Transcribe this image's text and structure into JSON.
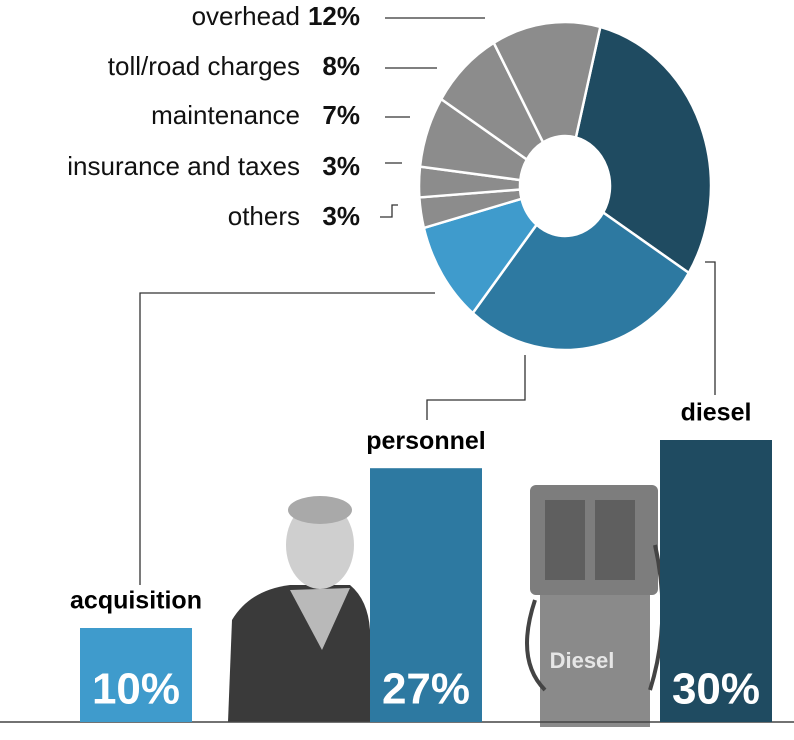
{
  "chart_data": {
    "type": "pie",
    "categories": [
      "diesel",
      "personnel",
      "acquisition",
      "others",
      "insurance and taxes",
      "maintenance",
      "toll/road charges",
      "overhead"
    ],
    "values": [
      30,
      27,
      10,
      3,
      3,
      7,
      8,
      12
    ],
    "value_labels": [
      "30%",
      "27%",
      "10%",
      "3%",
      "3%",
      "7%",
      "8%",
      "12%"
    ],
    "colors": [
      "#1f4b61",
      "#2d79a1",
      "#3f9bcc",
      "#8c8c8c",
      "#8c8c8c",
      "#8c8c8c",
      "#8c8c8c",
      "#8c8c8c"
    ]
  },
  "image_text": "Diesel"
}
